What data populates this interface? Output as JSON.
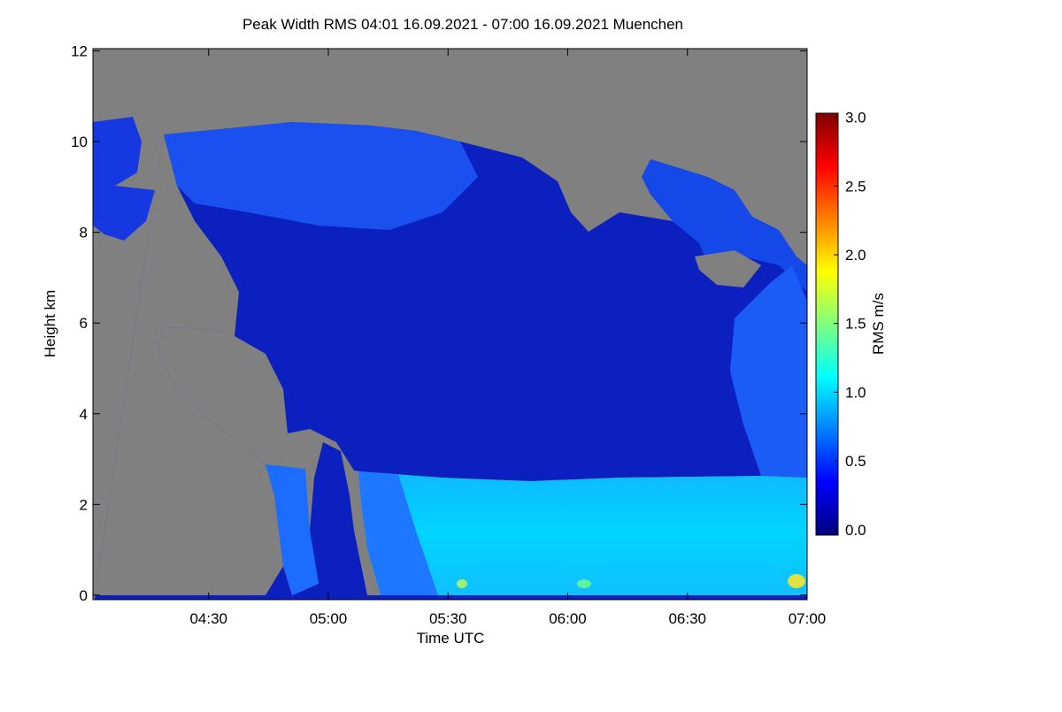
{
  "chart_data": {
    "type": "heatmap",
    "title": "Peak Width RMS   04:01 16.09.2021 - 07:00 16.09.2021 Muenchen",
    "x_label": "Time UTC",
    "y_label": "Height km",
    "xlim": [
      "04:01",
      "07:00"
    ],
    "xticks": [
      "04:30",
      "05:00",
      "05:30",
      "06:00",
      "06:30",
      "07:00"
    ],
    "ylim": [
      -0.1,
      12.05
    ],
    "yticks": [
      0,
      2,
      4,
      6,
      8,
      10,
      12
    ],
    "colorbar": {
      "label": "RMS m/s",
      "lim": [
        -0.04,
        3.03
      ],
      "ticks": [
        {
          "value": 0,
          "label": "0.0"
        },
        0.5,
        {
          "value": 1,
          "label": "1.0"
        },
        1.5,
        {
          "value": 2,
          "label": "2.0"
        },
        2.5,
        {
          "value": 3,
          "label": "3.0"
        }
      ],
      "colormap": [
        "#00007f",
        "#0000ff",
        "#007fff",
        "#00ffff",
        "#7fff7f",
        "#ffff00",
        "#ff7f00",
        "#ff0000",
        "#7f0000"
      ]
    },
    "background": "#808080"
  }
}
